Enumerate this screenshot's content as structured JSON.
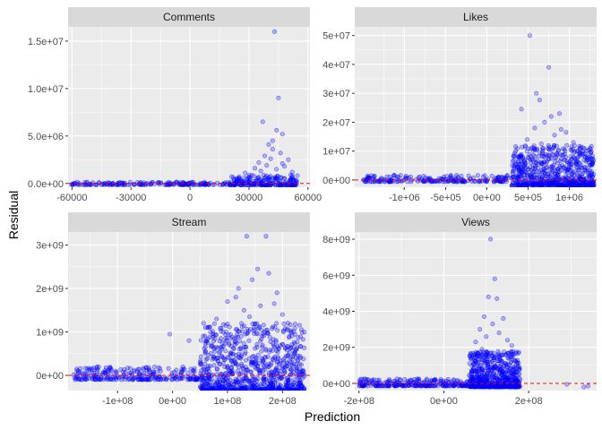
{
  "chart_data": {
    "type": "scatter",
    "xlabel": "Prediction",
    "ylabel": "Residual",
    "colors": {
      "points": "#0000ff",
      "reference_line": "#ff0000",
      "panel_bg": "#ebebeb",
      "strip_bg": "#d9d9d9",
      "grid": "#ffffff"
    },
    "reference_line": {
      "y": 0,
      "style": "dashed"
    },
    "facets": [
      {
        "title": "Comments",
        "xlim": [
          -62000,
          61000
        ],
        "ylim": [
          -400000,
          16500000
        ],
        "x_ticks": [
          -60000,
          -30000,
          0,
          30000,
          60000
        ],
        "x_tick_labels": [
          "-60000",
          "-30000",
          "0",
          "30000",
          "60000"
        ],
        "y_ticks": [
          0,
          5000000,
          10000000,
          15000000
        ],
        "y_tick_labels": [
          "0.0e+00",
          "5.0e+06",
          "1.0e+07",
          "1.5e+07"
        ],
        "points": {
          "outliers": [
            [
              43000,
              16000000
            ],
            [
              45000,
              9000000
            ],
            [
              37000,
              6500000
            ],
            [
              47000,
              5200000
            ],
            [
              44000,
              5600000
            ],
            [
              40000,
              4100000
            ],
            [
              42000,
              3600000
            ],
            [
              50000,
              2500000
            ],
            [
              38000,
              2900000
            ],
            [
              46000,
              3200000
            ],
            [
              35000,
              2200000
            ],
            [
              48000,
              1800000
            ],
            [
              41000,
              2600000
            ],
            [
              33000,
              1600000
            ],
            [
              52000,
              1200000
            ],
            [
              44000,
              1500000
            ],
            [
              39000,
              1900000
            ],
            [
              36000,
              1300000
            ],
            [
              47000,
              2100000
            ],
            [
              30000,
              900000
            ],
            [
              25000,
              700000
            ],
            [
              28000,
              1100000
            ],
            [
              42000,
              4500000
            ]
          ],
          "bands": [
            {
              "x_range": [
                -61000,
                25000
              ],
              "y_range": [
                -150000,
                150000
              ],
              "count": 200
            },
            {
              "x_range": [
                20000,
                55000
              ],
              "y_range": [
                -200000,
                900000
              ],
              "count": 220
            }
          ]
        }
      },
      {
        "title": "Likes",
        "xlim": [
          -1600000,
          1330000
        ],
        "ylim": [
          -2500000,
          53000000
        ],
        "x_ticks": [
          -1000000,
          -500000,
          0,
          500000,
          1000000
        ],
        "x_tick_labels": [
          "-1e+06",
          "-5e+05",
          "0e+00",
          "5e+05",
          "1e+06"
        ],
        "y_ticks": [
          0,
          10000000,
          20000000,
          30000000,
          40000000,
          50000000
        ],
        "y_tick_labels": [
          "0e+00",
          "1e+07",
          "2e+07",
          "3e+07",
          "4e+07",
          "5e+07"
        ],
        "points": {
          "outliers": [
            [
              520000,
              50000000
            ],
            [
              750000,
              39000000
            ],
            [
              640000,
              27700000
            ],
            [
              420000,
              24500000
            ],
            [
              880000,
              23000000
            ],
            [
              700000,
              20000000
            ],
            [
              580000,
              18000000
            ],
            [
              960000,
              16500000
            ],
            [
              820000,
              15500000
            ],
            [
              490000,
              14000000
            ],
            [
              1050000,
              13000000
            ],
            [
              660000,
              12500000
            ],
            [
              780000,
              22000000
            ],
            [
              900000,
              17500000
            ],
            [
              350000,
              10000000
            ],
            [
              1150000,
              9000000
            ],
            [
              600000,
              30000000
            ]
          ],
          "bands": [
            {
              "x_range": [
                -1500000,
                300000
              ],
              "y_range": [
                -600000,
                1800000
              ],
              "count": 220
            },
            {
              "x_range": [
                300000,
                1300000
              ],
              "y_range": [
                -2000000,
                12000000
              ],
              "count": 700
            }
          ]
        }
      },
      {
        "title": "Stream",
        "xlim": [
          -190000000,
          250000000
        ],
        "ylim": [
          -350000000,
          3300000000
        ],
        "x_ticks": [
          -100000000,
          0,
          100000000,
          200000000
        ],
        "x_tick_labels": [
          "-1e+08",
          "0e+00",
          "1e+08",
          "2e+08"
        ],
        "y_ticks": [
          0,
          1000000000,
          2000000000,
          3000000000
        ],
        "y_tick_labels": [
          "0e+00",
          "1e+09",
          "2e+09",
          "3e+09"
        ],
        "points": {
          "outliers": [
            [
              135000000,
              3200000000
            ],
            [
              170000000,
              3200000000
            ],
            [
              155000000,
              2450000000
            ],
            [
              175000000,
              2350000000
            ],
            [
              145000000,
              2200000000
            ],
            [
              120000000,
              2000000000
            ],
            [
              190000000,
              1900000000
            ],
            [
              100000000,
              1700000000
            ],
            [
              160000000,
              1600000000
            ],
            [
              130000000,
              1500000000
            ],
            [
              200000000,
              1400000000
            ],
            [
              80000000,
              1300000000
            ],
            [
              115000000,
              1800000000
            ],
            [
              185000000,
              1650000000
            ],
            [
              -5000000,
              950000000
            ],
            [
              60000000,
              1100000000
            ],
            [
              210000000,
              1200000000
            ],
            [
              140000000,
              1350000000
            ],
            [
              30000000,
              800000000
            ]
          ],
          "bands": [
            {
              "x_range": [
                -180000000,
                50000000
              ],
              "y_range": [
                -100000000,
                200000000
              ],
              "count": 260
            },
            {
              "x_range": [
                50000000,
                240000000
              ],
              "y_range": [
                -350000000,
                1200000000
              ],
              "count": 900
            }
          ]
        }
      },
      {
        "title": "Views",
        "xlim": [
          -210000000,
          360000000
        ],
        "ylim": [
          -400000000,
          8400000000
        ],
        "x_ticks": [
          -200000000,
          0,
          200000000
        ],
        "x_tick_labels": [
          "-2e+08",
          "0e+00",
          "2e+08"
        ],
        "y_ticks": [
          0,
          2000000000,
          4000000000,
          6000000000,
          8000000000
        ],
        "y_tick_labels": [
          "0e+00",
          "2e+09",
          "4e+09",
          "6e+09",
          "8e+09"
        ],
        "points": {
          "outliers": [
            [
              110000000,
              8000000000
            ],
            [
              120000000,
              5800000000
            ],
            [
              105000000,
              4800000000
            ],
            [
              125000000,
              4700000000
            ],
            [
              95000000,
              3700000000
            ],
            [
              140000000,
              3600000000
            ],
            [
              115000000,
              3300000000
            ],
            [
              85000000,
              3000000000
            ],
            [
              130000000,
              2800000000
            ],
            [
              100000000,
              2600000000
            ],
            [
              150000000,
              2400000000
            ],
            [
              75000000,
              2300000000
            ],
            [
              160000000,
              2100000000
            ],
            [
              90000000,
              1900000000
            ],
            [
              340000000,
              -150000000
            ],
            [
              330000000,
              -200000000
            ],
            [
              290000000,
              -50000000
            ]
          ],
          "bands": [
            {
              "x_range": [
                -200000000,
                60000000
              ],
              "y_range": [
                -150000000,
                250000000
              ],
              "count": 260
            },
            {
              "x_range": [
                60000000,
                180000000
              ],
              "y_range": [
                -200000000,
                1800000000
              ],
              "count": 650
            }
          ]
        }
      }
    ]
  }
}
